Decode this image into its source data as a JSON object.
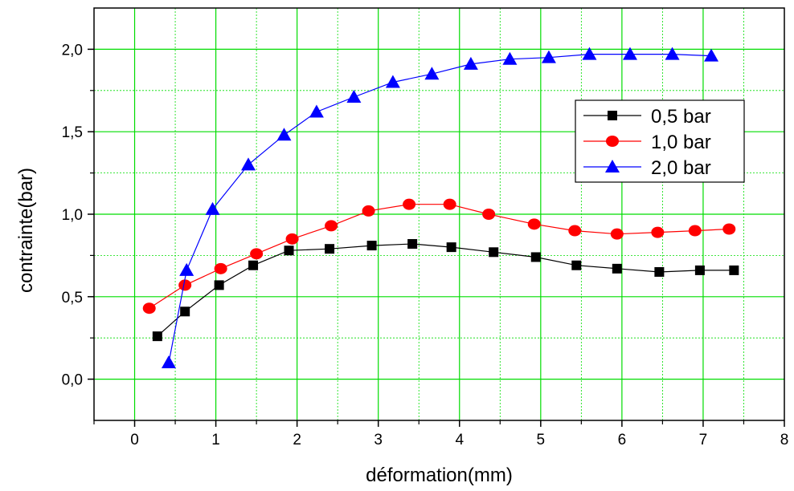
{
  "chart_data": {
    "type": "line",
    "xlabel": "déformation(mm)",
    "ylabel": "contrainte(bar)",
    "xlim": [
      -0.5,
      8
    ],
    "ylim": [
      -0.25,
      2.25
    ],
    "x_ticks": [
      {
        "value": 0,
        "label": "0"
      },
      {
        "value": 1,
        "label": "1"
      },
      {
        "value": 2,
        "label": "2"
      },
      {
        "value": 3,
        "label": "3"
      },
      {
        "value": 4,
        "label": "4"
      },
      {
        "value": 5,
        "label": "5"
      },
      {
        "value": 6,
        "label": "6"
      },
      {
        "value": 7,
        "label": "7"
      },
      {
        "value": 8,
        "label": "8"
      }
    ],
    "y_ticks": [
      {
        "value": 0.0,
        "label": "0,0"
      },
      {
        "value": 0.5,
        "label": "0,5"
      },
      {
        "value": 1.0,
        "label": "1,0"
      },
      {
        "value": 1.5,
        "label": "1,5"
      },
      {
        "value": 2.0,
        "label": "2,0"
      }
    ],
    "grid": true,
    "grid_color": "#00dd00",
    "legend_position": "right",
    "series": [
      {
        "name": "0,5 bar",
        "color": "#000000",
        "marker": "square",
        "points": [
          [
            0.28,
            0.26
          ],
          [
            0.62,
            0.41
          ],
          [
            1.04,
            0.57
          ],
          [
            1.46,
            0.69
          ],
          [
            1.9,
            0.78
          ],
          [
            2.4,
            0.79
          ],
          [
            2.92,
            0.81
          ],
          [
            3.42,
            0.82
          ],
          [
            3.9,
            0.8
          ],
          [
            4.42,
            0.77
          ],
          [
            4.94,
            0.74
          ],
          [
            5.44,
            0.69
          ],
          [
            5.94,
            0.67
          ],
          [
            6.46,
            0.65
          ],
          [
            6.96,
            0.66
          ],
          [
            7.38,
            0.66
          ]
        ]
      },
      {
        "name": "1,0 bar",
        "color": "#ff0000",
        "marker": "circle",
        "points": [
          [
            0.18,
            0.43
          ],
          [
            0.62,
            0.57
          ],
          [
            1.06,
            0.67
          ],
          [
            1.5,
            0.76
          ],
          [
            1.94,
            0.85
          ],
          [
            2.42,
            0.93
          ],
          [
            2.88,
            1.02
          ],
          [
            3.38,
            1.06
          ],
          [
            3.88,
            1.06
          ],
          [
            4.36,
            1.0
          ],
          [
            4.92,
            0.94
          ],
          [
            5.42,
            0.9
          ],
          [
            5.94,
            0.88
          ],
          [
            6.44,
            0.89
          ],
          [
            6.9,
            0.9
          ],
          [
            7.32,
            0.91
          ]
        ]
      },
      {
        "name": "2,0 bar",
        "color": "#0000ff",
        "marker": "triangle",
        "points": [
          [
            0.42,
            0.1
          ],
          [
            0.64,
            0.66
          ],
          [
            0.96,
            1.03
          ],
          [
            1.4,
            1.3
          ],
          [
            1.84,
            1.48
          ],
          [
            2.24,
            1.62
          ],
          [
            2.7,
            1.71
          ],
          [
            3.18,
            1.8
          ],
          [
            3.66,
            1.85
          ],
          [
            4.14,
            1.91
          ],
          [
            4.62,
            1.94
          ],
          [
            5.1,
            1.95
          ],
          [
            5.6,
            1.97
          ],
          [
            6.1,
            1.97
          ],
          [
            6.62,
            1.97
          ],
          [
            7.1,
            1.96
          ]
        ]
      }
    ]
  }
}
